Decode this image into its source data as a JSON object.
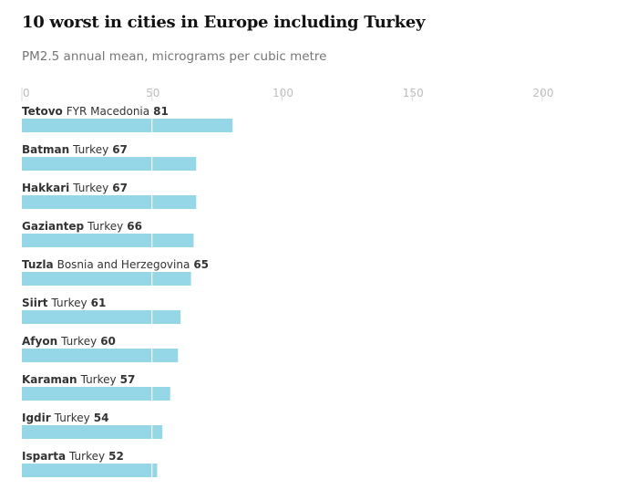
{
  "chart_data": {
    "type": "bar",
    "orientation": "horizontal",
    "title": "10 worst in cities in Europe including Turkey",
    "subtitle": "PM2.5 annual mean, micrograms per cubic metre",
    "xlim": [
      0,
      200
    ],
    "ticks": [
      0,
      50,
      100,
      150,
      200
    ],
    "grid": true,
    "bar_color": "#95d7e6",
    "categories": [
      {
        "city": "Tetovo",
        "country": "FYR Macedonia",
        "value": 81
      },
      {
        "city": "Batman",
        "country": "Turkey",
        "value": 67
      },
      {
        "city": "Hakkari",
        "country": "Turkey",
        "value": 67
      },
      {
        "city": "Gaziantep",
        "country": "Turkey",
        "value": 66
      },
      {
        "city": "Tuzla",
        "country": "Bosnia and Herzegovina",
        "value": 65
      },
      {
        "city": "Siirt",
        "country": "Turkey",
        "value": 61
      },
      {
        "city": "Afyon",
        "country": "Turkey",
        "value": 60
      },
      {
        "city": "Karaman",
        "country": "Turkey",
        "value": 57
      },
      {
        "city": "Igdir",
        "country": "Turkey",
        "value": 54
      },
      {
        "city": "Isparta",
        "country": "Turkey",
        "value": 52
      }
    ]
  }
}
